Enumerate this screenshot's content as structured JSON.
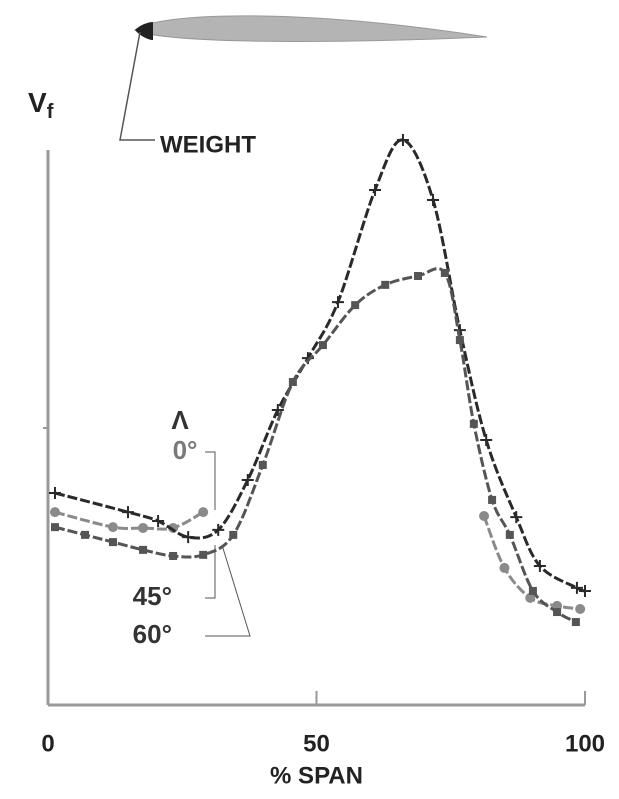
{
  "chart_data": {
    "type": "line",
    "y_label": {
      "main": "V",
      "sub": "f"
    },
    "x_label": "% SPAN",
    "annotation": "WEIGHT",
    "legend_title": "Λ",
    "xlim": [
      0,
      100
    ],
    "xticks": [
      0,
      50,
      100
    ],
    "ylim": [
      0,
      2
    ],
    "series": [
      {
        "name": "0°",
        "color": "#8a8a8a",
        "marker": "circle",
        "x": [
          1.3,
          12.1,
          17.7,
          23.3,
          28.9,
          null,
          81.2,
          85.0,
          89.8,
          94.8,
          99.1
        ],
        "values": [
          0.695,
          0.641,
          0.638,
          0.638,
          0.695,
          null,
          0.681,
          0.494,
          0.386,
          0.357,
          0.346
        ]
      },
      {
        "name": "45°",
        "color": "#2a2a2a",
        "marker": "plus",
        "x": [
          1.3,
          14.9,
          20.5,
          26.1,
          31.7,
          37.2,
          42.8,
          48.4,
          54.0,
          60.9,
          66.1,
          71.7,
          76.7,
          81.6,
          87.2,
          91.6,
          98.5,
          100
        ],
        "values": [
          0.764,
          0.695,
          0.663,
          0.605,
          0.631,
          0.811,
          1.063,
          1.25,
          1.452,
          1.856,
          2.036,
          1.82,
          1.351,
          0.955,
          0.677,
          0.501,
          0.422,
          0.411
        ]
      },
      {
        "name": "60°",
        "color": "#555555",
        "marker": "square",
        "x": [
          1.3,
          6.9,
          12.1,
          17.7,
          23.3,
          28.9,
          34.5,
          40.0,
          45.6,
          51.2,
          57.2,
          62.8,
          68.9,
          73.9,
          76.7,
          79.3,
          82.7,
          86.0,
          90.3,
          94.8,
          98.3
        ],
        "values": [
          0.641,
          0.613,
          0.587,
          0.559,
          0.537,
          0.541,
          0.613,
          0.865,
          1.164,
          1.297,
          1.441,
          1.514,
          1.546,
          1.557,
          1.315,
          1.013,
          0.739,
          0.613,
          0.411,
          0.335,
          0.299
        ]
      }
    ]
  }
}
